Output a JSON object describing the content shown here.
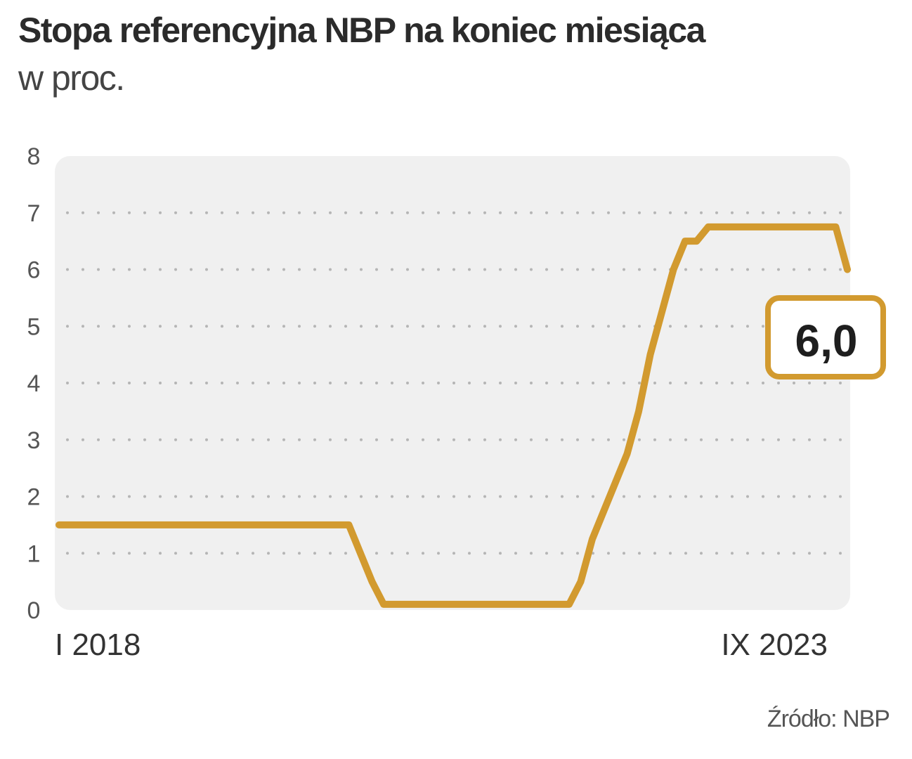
{
  "header": {
    "title": "Stopa referencyjna NBP na koniec miesiąca",
    "subtitle": "w proc."
  },
  "footer": {
    "source": "Źródło: NBP"
  },
  "colors": {
    "line": "#d29a2f",
    "plot_background": "#f0f0f0",
    "grid": "#b5b5b5",
    "label_text": "#1e1e1e"
  },
  "chart_data": {
    "type": "line",
    "title": "Stopa referencyjna NBP na koniec miesiąca",
    "subtitle": "w proc.",
    "ylim": [
      0,
      8
    ],
    "y_ticks": [
      "0",
      "1",
      "2",
      "3",
      "4",
      "5",
      "6",
      "7",
      "8"
    ],
    "grid": true,
    "x_tick_labels": [
      {
        "x": "2018-01",
        "label": "I 2018"
      },
      {
        "x": "2023-09",
        "label": "IX 2023"
      }
    ],
    "series": [
      {
        "points": [
          {
            "x": "2018-01",
            "y": 1.5
          },
          {
            "x": "2020-02",
            "y": 1.5
          },
          {
            "x": "2020-03",
            "y": 1.0
          },
          {
            "x": "2020-04",
            "y": 0.5
          },
          {
            "x": "2020-05",
            "y": 0.1
          },
          {
            "x": "2021-09",
            "y": 0.1
          },
          {
            "x": "2021-10",
            "y": 0.5
          },
          {
            "x": "2021-11",
            "y": 1.25
          },
          {
            "x": "2021-12",
            "y": 1.75
          },
          {
            "x": "2022-01",
            "y": 2.25
          },
          {
            "x": "2022-02",
            "y": 2.75
          },
          {
            "x": "2022-03",
            "y": 3.5
          },
          {
            "x": "2022-04",
            "y": 4.5
          },
          {
            "x": "2022-05",
            "y": 5.25
          },
          {
            "x": "2022-06",
            "y": 6.0
          },
          {
            "x": "2022-07",
            "y": 6.5
          },
          {
            "x": "2022-08",
            "y": 6.5
          },
          {
            "x": "2022-09",
            "y": 6.75
          },
          {
            "x": "2023-08",
            "y": 6.75
          },
          {
            "x": "2023-09",
            "y": 6.0
          }
        ]
      }
    ],
    "last_value_label": "6,0"
  }
}
